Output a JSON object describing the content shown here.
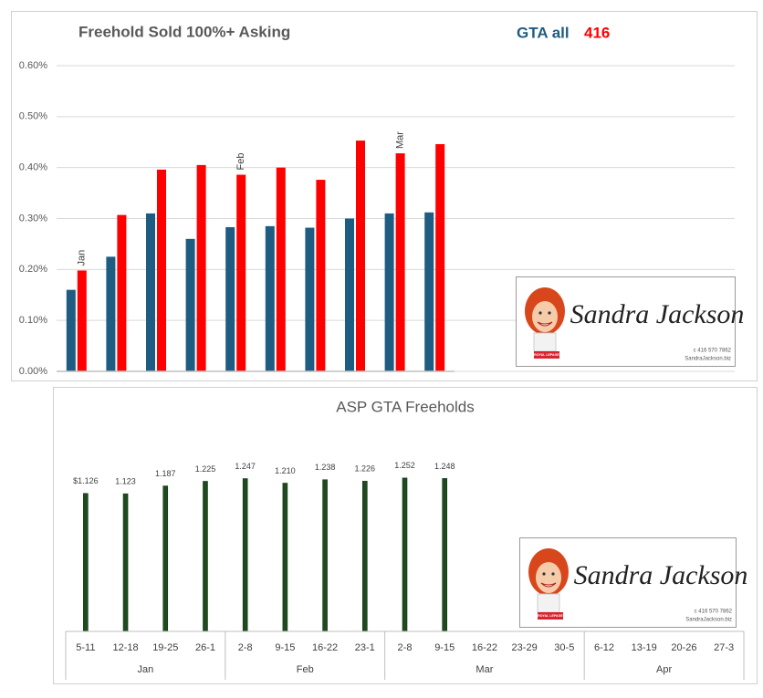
{
  "chart_data": [
    {
      "type": "bar",
      "title": "Freehold  Sold 100%+ Asking",
      "categories": [
        null,
        null,
        null,
        null,
        null,
        null,
        null,
        null,
        null,
        null
      ],
      "month_labels": [
        "Jan",
        null,
        null,
        null,
        "Feb",
        null,
        null,
        null,
        "Mar",
        null
      ],
      "series": [
        {
          "name": "GTA all",
          "color": "#1f5c82",
          "values": [
            0.16,
            0.225,
            0.31,
            0.26,
            0.283,
            0.285,
            0.282,
            0.3,
            0.31,
            0.312
          ]
        },
        {
          "name": "416",
          "color": "#ff0000",
          "values": [
            0.198,
            0.307,
            0.396,
            0.405,
            0.386,
            0.4,
            0.376,
            0.453,
            0.428,
            0.446
          ]
        }
      ],
      "ylim": [
        0,
        0.6
      ],
      "yticks": [
        {
          "value": 0,
          "label": "0.00%"
        },
        {
          "value": 0.1,
          "label": "0.10%"
        },
        {
          "value": 0.2,
          "label": "0.20%"
        },
        {
          "value": 0.3,
          "label": "0.30%"
        },
        {
          "value": 0.4,
          "label": "0.40%"
        },
        {
          "value": 0.5,
          "label": "0.50%"
        },
        {
          "value": 0.6,
          "label": "0.60%"
        }
      ],
      "grid": true
    },
    {
      "type": "bar",
      "title": "ASP GTA Freeholds",
      "categories": [
        "5-11",
        "12-18",
        "19-25",
        "26-1",
        "2-8",
        "9-15",
        "16-22",
        "23-1",
        "2-8",
        "9-15",
        "16-22",
        "23-29",
        "30-5",
        "6-12",
        "13-19",
        "20-26",
        "27-3"
      ],
      "groups": [
        {
          "name": "Jan",
          "size": 4
        },
        {
          "name": "Feb",
          "size": 4
        },
        {
          "name": "Mar",
          "size": 5
        },
        {
          "name": "Apr",
          "size": 4
        }
      ],
      "values": [
        1.126,
        1.123,
        1.187,
        1.225,
        1.247,
        1.21,
        1.238,
        1.226,
        1.252,
        1.248,
        null,
        null,
        null,
        null,
        null,
        null,
        null
      ],
      "value_labels": [
        "$1.126",
        "1.123",
        "1.187",
        "1.225",
        "1.247",
        "1.210",
        "1.238",
        "1.226",
        "1.252",
        "1.248",
        null,
        null,
        null,
        null,
        null,
        null,
        null
      ],
      "color": "#1e4b1e",
      "ylim": [
        0,
        1.4
      ]
    }
  ],
  "logo": {
    "name": "Sandra Jackson",
    "brand": "ROYAL LEPAGE",
    "phone": "c 416 570 7862",
    "site": "SandraJackson.biz"
  }
}
